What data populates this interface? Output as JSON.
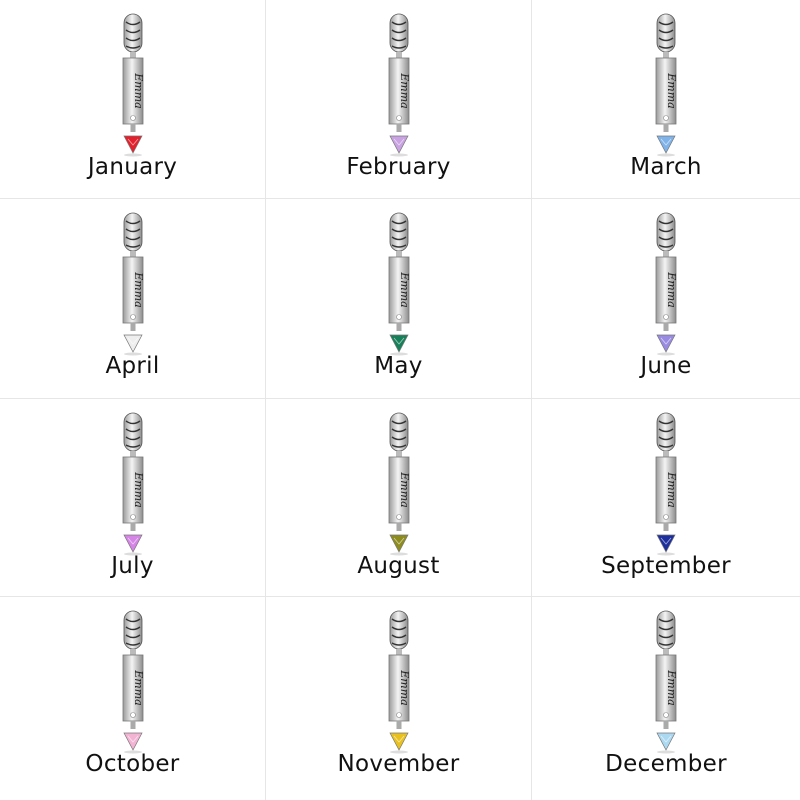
{
  "engraving": "Emma",
  "months": [
    {
      "label": "January",
      "gem_color": "#e3202b"
    },
    {
      "label": "February",
      "gem_color": "#c9a2e2"
    },
    {
      "label": "March",
      "gem_color": "#7fb3ea"
    },
    {
      "label": "April",
      "gem_color": "#eeeeee"
    },
    {
      "label": "May",
      "gem_color": "#17805a"
    },
    {
      "label": "June",
      "gem_color": "#9a8be2"
    },
    {
      "label": "July",
      "gem_color": "#d585e6"
    },
    {
      "label": "August",
      "gem_color": "#8d8c1e"
    },
    {
      "label": "September",
      "gem_color": "#1c2f9c"
    },
    {
      "label": "October",
      "gem_color": "#f3b4d4"
    },
    {
      "label": "November",
      "gem_color": "#e9c11f"
    },
    {
      "label": "December",
      "gem_color": "#acd9f2"
    }
  ]
}
